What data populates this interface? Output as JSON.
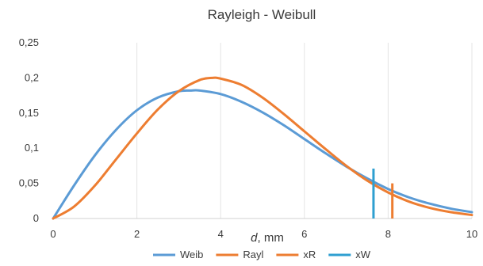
{
  "chart_data": {
    "type": "line",
    "title": "Rayleigh - Weibull",
    "xlabel_var": "d",
    "xlabel_unit": ", mm",
    "ylabel": "",
    "xlim": [
      0,
      10
    ],
    "ylim": [
      0,
      0.25
    ],
    "x_ticks": [
      0,
      2,
      4,
      6,
      8,
      10
    ],
    "x_tick_labels": [
      "0",
      "2",
      "4",
      "6",
      "8",
      "10"
    ],
    "y_ticks": [
      0,
      0.05,
      0.1,
      0.15,
      0.2,
      0.25
    ],
    "y_tick_labels": [
      "0",
      "0,05",
      "0,1",
      "0,15",
      "0,2",
      "0,25"
    ],
    "grid": "vertical",
    "legend_position": "bottom",
    "series": [
      {
        "name": "Weib",
        "kind": "line",
        "color": "#5b9bd5",
        "x": [
          0,
          0.5,
          1,
          1.5,
          2,
          2.5,
          3,
          3.3,
          3.5,
          4,
          4.5,
          5,
          5.5,
          6,
          6.5,
          7,
          7.5,
          8,
          8.5,
          9,
          9.5,
          10
        ],
        "y": [
          0,
          0.047,
          0.09,
          0.126,
          0.154,
          0.172,
          0.181,
          0.182,
          0.182,
          0.177,
          0.166,
          0.151,
          0.133,
          0.113,
          0.093,
          0.074,
          0.057,
          0.042,
          0.03,
          0.021,
          0.014,
          0.009
        ]
      },
      {
        "name": "Rayl",
        "kind": "line",
        "color": "#ed7d31",
        "x": [
          0,
          0.5,
          1,
          1.5,
          2,
          2.5,
          3,
          3.5,
          3.8,
          4,
          4.5,
          5,
          5.5,
          6,
          6.5,
          7,
          7.5,
          8,
          8.5,
          9,
          9.5,
          10
        ],
        "y": [
          0,
          0.017,
          0.047,
          0.084,
          0.121,
          0.155,
          0.181,
          0.197,
          0.2,
          0.199,
          0.19,
          0.172,
          0.149,
          0.124,
          0.099,
          0.075,
          0.054,
          0.037,
          0.024,
          0.015,
          0.009,
          0.005
        ]
      },
      {
        "name": "xR",
        "kind": "vline",
        "color": "#ed7d31",
        "x": 8.1,
        "y_range": [
          0,
          0.05
        ]
      },
      {
        "name": "xW",
        "kind": "vline",
        "color": "#2e9fd0",
        "x": 7.65,
        "y_range": [
          0,
          0.071
        ]
      }
    ]
  }
}
